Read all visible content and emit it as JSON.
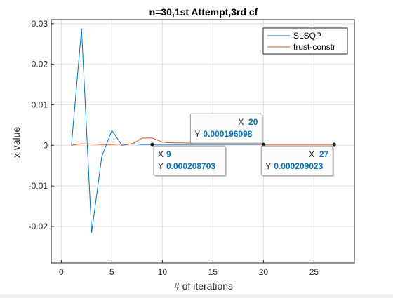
{
  "chart_data": {
    "type": "line",
    "title": "n=30,1st Attempt,3rd cf",
    "xlabel": "# of iterations",
    "ylabel": "x value",
    "xlim": [
      -1,
      29
    ],
    "ylim": [
      -0.029,
      0.031
    ],
    "xticks": [
      0,
      5,
      10,
      15,
      20,
      25
    ],
    "xtick_labels": [
      "0",
      "5",
      "10",
      "15",
      "20",
      "25"
    ],
    "yticks": [
      -0.02,
      -0.01,
      0,
      0.01,
      0.02,
      0.03
    ],
    "ytick_labels": [
      "-0.02",
      "-0.01",
      "0",
      "0.01",
      "0.02",
      "0.03"
    ],
    "grid": true,
    "legend_position": "top-right",
    "series": [
      {
        "name": "SLSQP",
        "color": "#0072bd",
        "x": [
          1,
          2,
          3,
          4,
          5,
          6,
          7,
          8,
          9,
          10,
          11,
          12,
          13,
          14,
          15,
          16,
          17,
          18,
          19,
          20
        ],
        "y": [
          0,
          0.0287,
          -0.0215,
          -0.0028,
          0.0037,
          0.0,
          0.0004,
          0.0002,
          0.0002,
          0.0002,
          0.0002,
          0.0002,
          0.0002,
          0.0002,
          0.0002,
          0.0002,
          0.0002,
          0.0002,
          0.0002,
          0.000196098
        ]
      },
      {
        "name": "trust-constr",
        "color": "#d95319",
        "x": [
          1,
          2,
          3,
          4,
          5,
          6,
          7,
          8,
          9,
          10,
          11,
          12,
          13,
          14,
          15,
          16,
          17,
          18,
          19,
          20,
          21,
          22,
          23,
          24,
          25,
          26,
          27
        ],
        "y": [
          0,
          0.0004,
          0.0003,
          0.0002,
          0.0002,
          0.0003,
          0.0003,
          0.0018,
          0.0018,
          0.0008,
          0.0006,
          0.0006,
          0.0005,
          0.0005,
          0.0004,
          0.0004,
          0.0003,
          0.0003,
          0.0003,
          0.0002,
          0.0002,
          0.0002,
          0.0002,
          0.0002,
          0.0002,
          0.0002,
          0.000209023
        ]
      }
    ],
    "datatips": [
      {
        "x_label": "X",
        "x_value": "9",
        "y_label": "Y",
        "y_value": "0.000208703",
        "anchor_x": 9,
        "anchor_y": 0.000208703,
        "placement": "below-right"
      },
      {
        "x_label": "X",
        "x_value": "20",
        "y_label": "Y",
        "y_value": "0.000196098",
        "anchor_x": 20,
        "anchor_y": 0.000196098,
        "placement": "above-left"
      },
      {
        "x_label": "X",
        "x_value": "27",
        "y_label": "Y",
        "y_value": "0.000209023",
        "anchor_x": 27,
        "anchor_y": 0.000209023,
        "placement": "below-left"
      }
    ]
  }
}
